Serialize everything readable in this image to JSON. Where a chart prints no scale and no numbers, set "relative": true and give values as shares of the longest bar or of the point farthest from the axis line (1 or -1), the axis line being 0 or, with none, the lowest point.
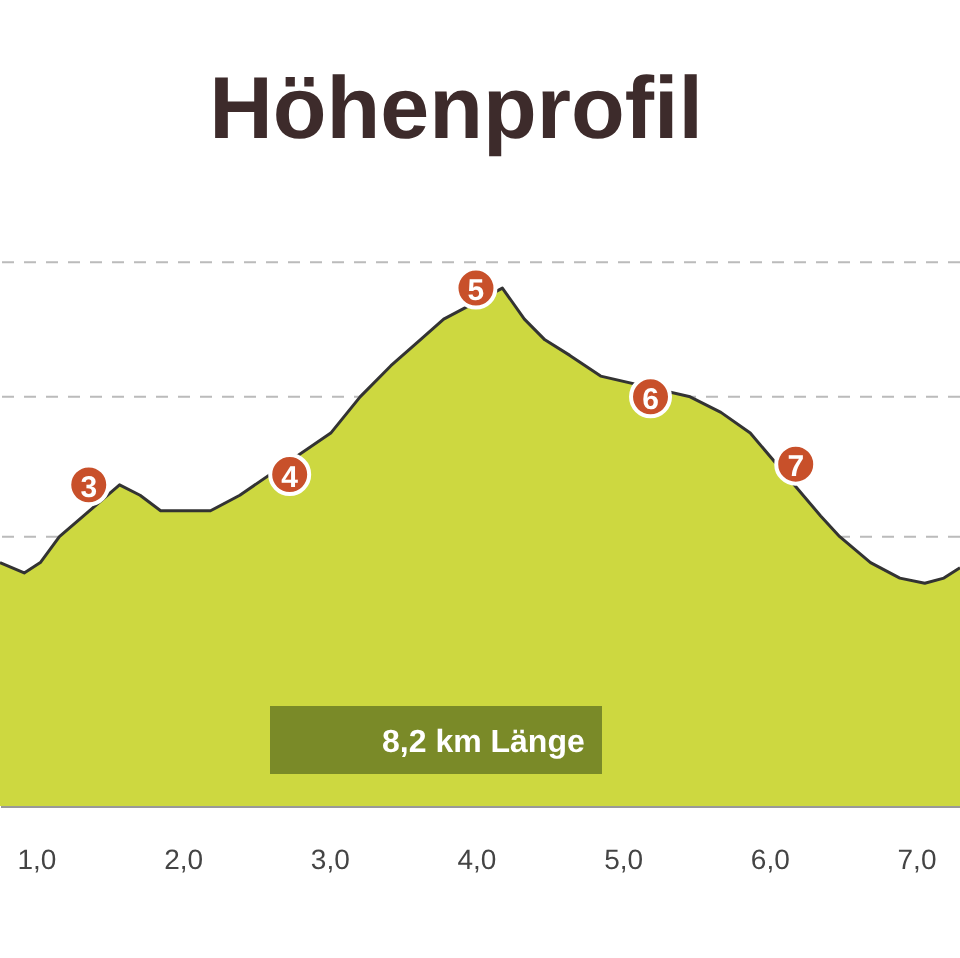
{
  "chart_data": {
    "type": "area",
    "title": "Höhenprofil",
    "relative": true,
    "legend": "bottom",
    "ref_lines": [
      {
        "axis": "y",
        "value": 1.05,
        "line_style": "dashed"
      },
      {
        "axis": "y",
        "value": 0.79,
        "line_style": "dashed"
      },
      {
        "axis": "y",
        "value": 0.52,
        "line_style": "dashed"
      }
    ],
    "x": [
      0.755,
      0.92,
      1.03,
      1.16,
      1.57,
      1.71,
      1.85,
      2.01,
      2.19,
      2.39,
      3.01,
      3.21,
      3.42,
      3.62,
      3.78,
      4.18,
      4.33,
      4.47,
      4.64,
      4.85,
      5.46,
      5.67,
      5.87,
      6.35,
      6.48,
      6.69,
      6.89,
      7.06,
      7.19,
      7.3
    ],
    "xlim": [
      0.755,
      7.3
    ],
    "xticks": [
      {
        "value": 1,
        "label": "1,0"
      },
      {
        "value": 2,
        "label": "2,0"
      },
      {
        "value": 3,
        "label": "3,0"
      },
      {
        "value": 4,
        "label": "4,0"
      },
      {
        "value": 5,
        "label": "5,0"
      },
      {
        "value": 6,
        "label": "6,0"
      },
      {
        "value": 7,
        "label": "7,0"
      }
    ],
    "series": [
      {
        "name": "8,2 km Länge",
        "color": "#cdd840",
        "values": [
          0.47,
          0.45,
          0.47,
          0.52,
          0.62,
          0.6,
          0.57,
          0.57,
          0.57,
          0.6,
          0.72,
          0.79,
          0.85,
          0.9,
          0.94,
          1.0,
          0.94,
          0.9,
          0.87,
          0.83,
          0.79,
          0.76,
          0.72,
          0.56,
          0.52,
          0.47,
          0.44,
          0.43,
          0.44,
          0.46
        ]
      }
    ],
    "annotations": [
      {
        "text": "3",
        "x": 1.36,
        "y": 0.62
      },
      {
        "text": "4",
        "x": 2.73,
        "y": 0.64
      },
      {
        "text": "5",
        "x": 4.0,
        "y": 1.0
      },
      {
        "text": "6",
        "x": 5.19,
        "y": 0.79
      },
      {
        "text": "7",
        "x": 6.18,
        "y": 0.66
      }
    ]
  }
}
